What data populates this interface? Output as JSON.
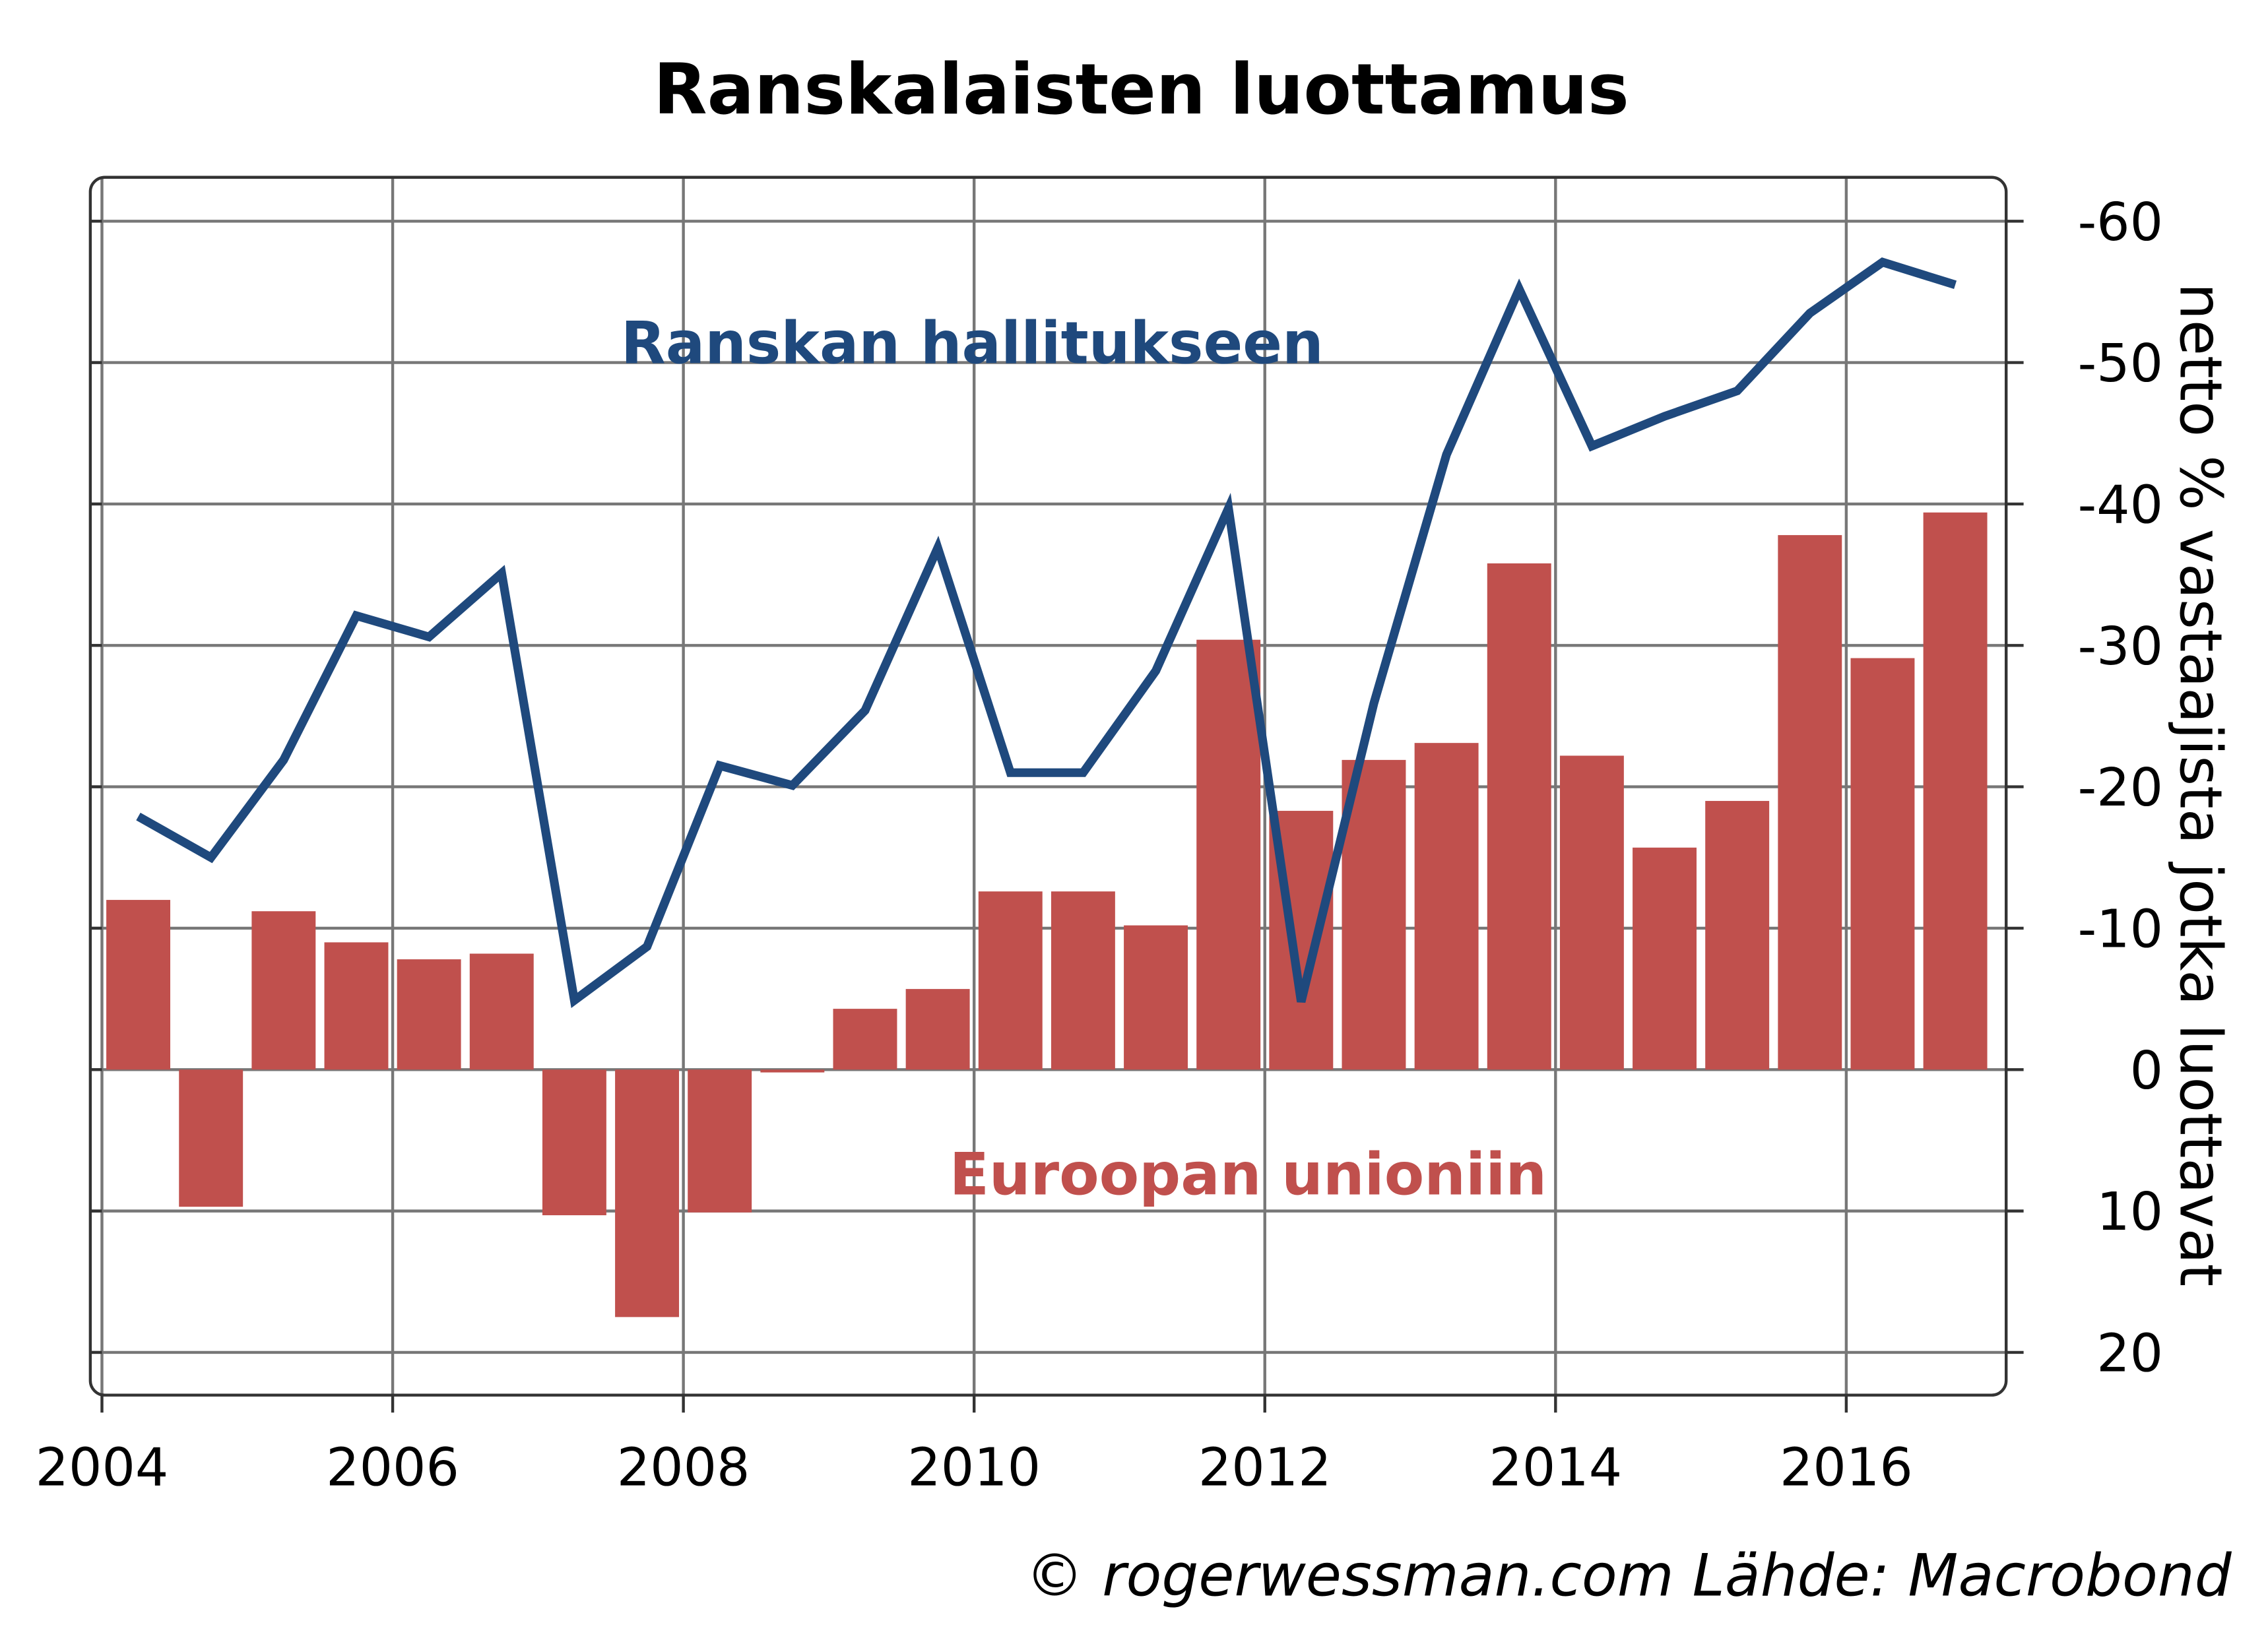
{
  "chart_data": {
    "type": "bar+line",
    "title": "Ranskalaisten luottamus",
    "ylabel": "netto % vastaajista jotka luottavat",
    "xlabel": "",
    "source": "© rogerwessman.com Lähde: Macrobond",
    "xlim": [
      2004,
      2017.1
    ],
    "ylim": [
      23,
      -63
    ],
    "y_inverted": true,
    "grid": true,
    "x_ticks": [
      2004,
      2006,
      2008,
      2010,
      2012,
      2014,
      2016
    ],
    "x_tick_labels": [
      "2004",
      "2006",
      "2008",
      "2010",
      "2012",
      "2014",
      "2016"
    ],
    "y_ticks": [
      -60,
      -50,
      -40,
      -30,
      -20,
      -10,
      0,
      10,
      20
    ],
    "y_tick_labels": [
      "-60",
      "-50",
      "-40",
      "-30",
      "-20",
      "-10",
      "0",
      "10",
      "20"
    ],
    "x": [
      2004.25,
      2004.75,
      2005.25,
      2005.75,
      2006.25,
      2006.75,
      2007.25,
      2007.75,
      2008.25,
      2008.75,
      2009.25,
      2009.75,
      2010.25,
      2010.75,
      2011.25,
      2011.75,
      2012.25,
      2012.75,
      2013.25,
      2013.75,
      2014.25,
      2014.75,
      2015.25,
      2015.75,
      2016.25,
      2016.75
    ],
    "series": [
      {
        "name": "Euroopan unioniin",
        "type": "bar",
        "color": "#c0504d",
        "values": [
          -12,
          9.7,
          -11.2,
          -9,
          -7.8,
          -8.2,
          10.3,
          17.5,
          10.1,
          0.2,
          -4.3,
          -5.7,
          -12.6,
          -12.6,
          -10.2,
          -30.4,
          -18.3,
          -21.9,
          -23.1,
          -35.8,
          -22.2,
          -15.7,
          -19,
          -37.8,
          -29.1,
          -39.4
        ]
      },
      {
        "name": "Ranskan hallitukseen",
        "type": "line",
        "color": "#1f497d",
        "values": [
          -17.9,
          -15,
          -21.9,
          -32.1,
          -30.6,
          -35.1,
          -4.9,
          -8.7,
          -21.5,
          -20.1,
          -25.4,
          -36.9,
          -21,
          -21,
          -28.2,
          -39.7,
          -4.8,
          -25.9,
          -43.5,
          -55.2,
          -44.1,
          -46.2,
          -48,
          -53.5,
          -57.1,
          -55.5
        ]
      }
    ]
  }
}
